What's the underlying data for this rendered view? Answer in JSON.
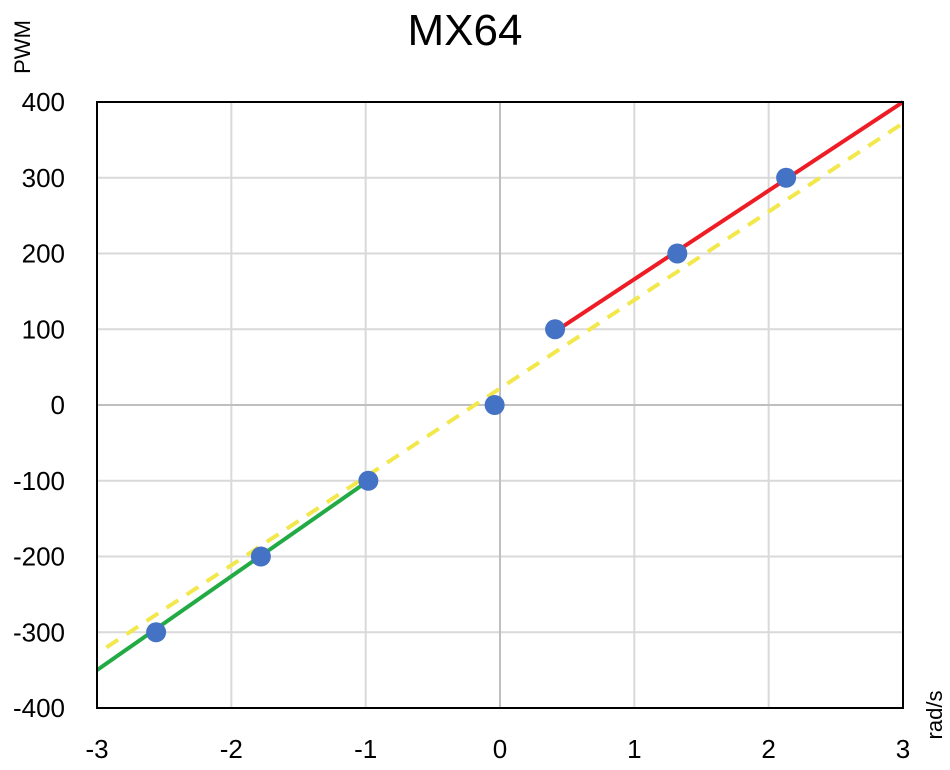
{
  "chart_data": {
    "type": "scatter",
    "title": "MX64",
    "xlabel": "rad/s",
    "ylabel": "PWM",
    "xlim": [
      -3,
      3
    ],
    "ylim": [
      -400,
      400
    ],
    "x_ticks": [
      -3,
      -2,
      -1,
      0,
      1,
      2,
      3
    ],
    "y_ticks": [
      400,
      300,
      200,
      100,
      0,
      -100,
      -200,
      -300,
      -400
    ],
    "x_tick_labels": [
      "-3",
      "-2",
      "-1",
      "0",
      "1",
      "2",
      "3"
    ],
    "y_tick_labels": [
      "400",
      "300",
      "200",
      "100",
      "0",
      "-100",
      "-200",
      "-300",
      "-400"
    ],
    "grid": true,
    "series": [
      {
        "kind": "scatter",
        "color": "#4472C4",
        "points": [
          {
            "x": -2.56,
            "y": -300
          },
          {
            "x": -1.78,
            "y": -200
          },
          {
            "x": -0.98,
            "y": -100
          },
          {
            "x": -0.04,
            "y": 0
          },
          {
            "x": 0.41,
            "y": 100
          },
          {
            "x": 1.32,
            "y": 200
          },
          {
            "x": 2.13,
            "y": 300
          }
        ]
      },
      {
        "kind": "line",
        "style": "solid",
        "color": "#22AA44",
        "points": [
          {
            "x": -3.0,
            "y": -350
          },
          {
            "x": -0.98,
            "y": -100
          }
        ]
      },
      {
        "kind": "line",
        "style": "solid",
        "color": "#EE1C25",
        "points": [
          {
            "x": 0.41,
            "y": 97
          },
          {
            "x": 3.0,
            "y": 400
          }
        ]
      },
      {
        "kind": "line",
        "style": "dashed",
        "color": "#F2E84B",
        "points": [
          {
            "x": -2.93,
            "y": -320
          },
          {
            "x": 3.0,
            "y": 372
          }
        ]
      }
    ]
  }
}
